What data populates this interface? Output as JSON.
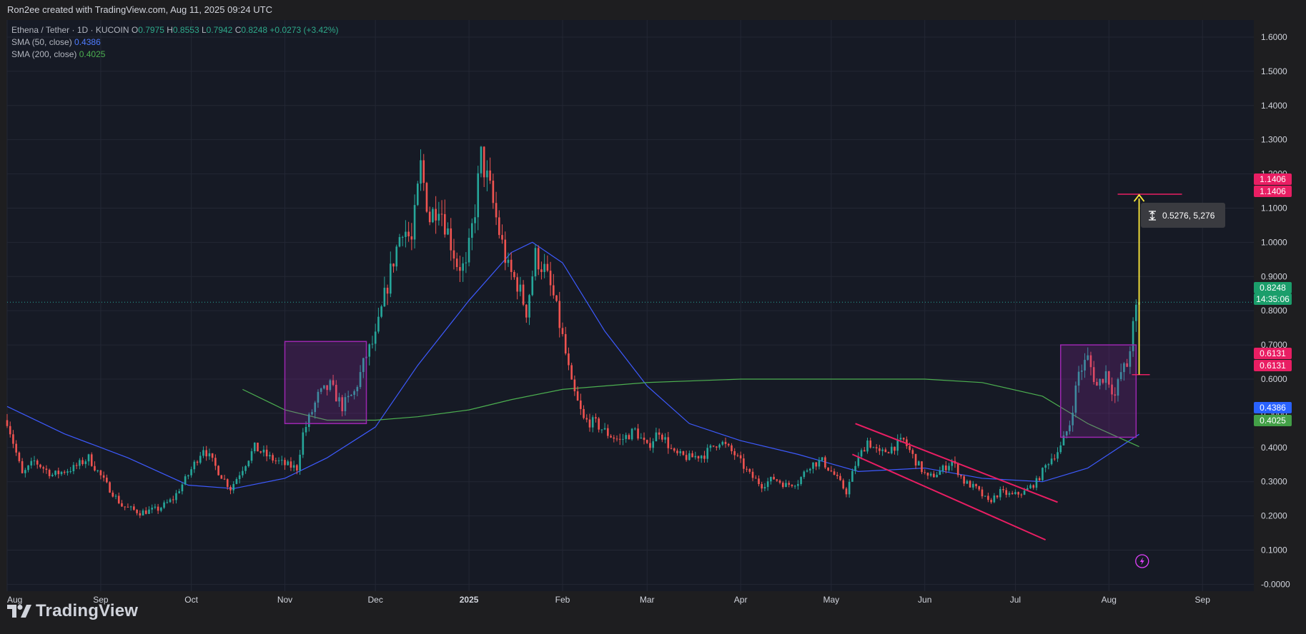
{
  "attribution": "Ron2ee created with TradingView.com, Aug 11, 2025 09:24 UTC",
  "brand": "TradingView",
  "legend": {
    "symbol": "Ethena / Tether · 1D · KUCOIN",
    "o_label": "O",
    "o": "0.7975",
    "h_label": "H",
    "h": "0.8553",
    "l_label": "L",
    "l": "0.7942",
    "c_label": "C",
    "c": "0.8248",
    "change": "+0.0273 (+3.42%)",
    "sma50_label": "SMA (50, close)",
    "sma50_value": "0.4386",
    "sma200_label": "SMA (200, close)",
    "sma200_value": "0.4025"
  },
  "tags": {
    "target_a": "1.1406",
    "target_b": "1.1406",
    "price": "0.8248",
    "countdown": "14:35:06",
    "entry_a": "0.6131",
    "entry_b": "0.6131",
    "sma50": "0.4386",
    "sma200": "0.4025"
  },
  "measure": {
    "text": "0.5276, 5,276"
  },
  "colors": {
    "up": "#26a69a",
    "down": "#ef5350",
    "sma50": "#3d5afe",
    "sma200": "#4caf50",
    "box": "#9c27b0",
    "channel": "#e91e63",
    "measure_arrow": "#ffeb3b",
    "tag_red": "#e91e63",
    "tag_green": "#1b9e6b",
    "tag_blue": "#2962ff",
    "tag_sma200": "#43a047"
  },
  "chart_data": {
    "type": "candlestick",
    "title": "Ethena / Tether · 1D · KUCOIN",
    "x_ticks": [
      "Aug",
      "Sep",
      "Oct",
      "Nov",
      "Dec",
      "2025",
      "Feb",
      "Mar",
      "Apr",
      "May",
      "Jun",
      "Jul",
      "Aug",
      "Sep"
    ],
    "y_ticks": [
      "1.6000",
      "1.5000",
      "1.4000",
      "1.3000",
      "1.2000",
      "1.1000",
      "1.0000",
      "0.9000",
      "0.8000",
      "0.7000",
      "0.6000",
      "0.5000",
      "0.4000",
      "0.3000",
      "0.2000",
      "0.1000",
      "-0.0000"
    ],
    "ylim": [
      -0.02,
      1.65
    ],
    "x_range": [
      "2024-08-01",
      "2025-09-18"
    ],
    "close_path": [
      [
        "2024-08-01",
        0.48
      ],
      [
        "2024-08-06",
        0.32
      ],
      [
        "2024-08-10",
        0.36
      ],
      [
        "2024-08-16",
        0.32
      ],
      [
        "2024-08-23",
        0.34
      ],
      [
        "2024-08-28",
        0.37
      ],
      [
        "2024-09-03",
        0.29
      ],
      [
        "2024-09-08",
        0.23
      ],
      [
        "2024-09-14",
        0.21
      ],
      [
        "2024-09-20",
        0.22
      ],
      [
        "2024-09-25",
        0.25
      ],
      [
        "2024-09-30",
        0.32
      ],
      [
        "2024-10-05",
        0.4
      ],
      [
        "2024-10-10",
        0.33
      ],
      [
        "2024-10-14",
        0.28
      ],
      [
        "2024-10-18",
        0.34
      ],
      [
        "2024-10-22",
        0.4
      ],
      [
        "2024-10-27",
        0.37
      ],
      [
        "2024-11-01",
        0.35
      ],
      [
        "2024-11-05",
        0.34
      ],
      [
        "2024-11-07",
        0.44
      ],
      [
        "2024-11-12",
        0.55
      ],
      [
        "2024-11-16",
        0.58
      ],
      [
        "2024-11-20",
        0.52
      ],
      [
        "2024-11-24",
        0.56
      ],
      [
        "2024-11-28",
        0.67
      ],
      [
        "2024-12-01",
        0.72
      ],
      [
        "2024-12-04",
        0.84
      ],
      [
        "2024-12-07",
        0.95
      ],
      [
        "2024-12-10",
        1.05
      ],
      [
        "2024-12-13",
        1.0
      ],
      [
        "2024-12-16",
        1.22
      ],
      [
        "2024-12-19",
        1.07
      ],
      [
        "2024-12-22",
        1.12
      ],
      [
        "2024-12-25",
        1.03
      ],
      [
        "2024-12-28",
        0.94
      ],
      [
        "2024-12-31",
        0.92
      ],
      [
        "2025-01-03",
        1.1
      ],
      [
        "2025-01-05",
        1.25
      ],
      [
        "2025-01-08",
        1.15
      ],
      [
        "2025-01-11",
        1.03
      ],
      [
        "2025-01-14",
        0.92
      ],
      [
        "2025-01-17",
        0.88
      ],
      [
        "2025-01-20",
        0.8
      ],
      [
        "2025-01-23",
        0.96
      ],
      [
        "2025-01-26",
        0.92
      ],
      [
        "2025-01-29",
        0.84
      ],
      [
        "2025-02-01",
        0.72
      ],
      [
        "2025-02-04",
        0.58
      ],
      [
        "2025-02-08",
        0.48
      ],
      [
        "2025-02-12",
        0.47
      ],
      [
        "2025-02-16",
        0.44
      ],
      [
        "2025-02-20",
        0.42
      ],
      [
        "2025-02-25",
        0.45
      ],
      [
        "2025-03-01",
        0.4
      ],
      [
        "2025-03-05",
        0.45
      ],
      [
        "2025-03-10",
        0.38
      ],
      [
        "2025-03-15",
        0.37
      ],
      [
        "2025-03-20",
        0.38
      ],
      [
        "2025-03-25",
        0.42
      ],
      [
        "2025-03-30",
        0.38
      ],
      [
        "2025-04-04",
        0.32
      ],
      [
        "2025-04-08",
        0.29
      ],
      [
        "2025-04-12",
        0.31
      ],
      [
        "2025-04-16",
        0.29
      ],
      [
        "2025-04-20",
        0.3
      ],
      [
        "2025-04-24",
        0.35
      ],
      [
        "2025-04-28",
        0.36
      ],
      [
        "2025-05-02",
        0.32
      ],
      [
        "2025-05-06",
        0.27
      ],
      [
        "2025-05-09",
        0.35
      ],
      [
        "2025-05-13",
        0.42
      ],
      [
        "2025-05-17",
        0.38
      ],
      [
        "2025-05-21",
        0.4
      ],
      [
        "2025-05-25",
        0.42
      ],
      [
        "2025-05-29",
        0.36
      ],
      [
        "2025-06-02",
        0.31
      ],
      [
        "2025-06-06",
        0.33
      ],
      [
        "2025-06-10",
        0.36
      ],
      [
        "2025-06-14",
        0.3
      ],
      [
        "2025-06-18",
        0.28
      ],
      [
        "2025-06-22",
        0.24
      ],
      [
        "2025-06-26",
        0.27
      ],
      [
        "2025-06-30",
        0.26
      ],
      [
        "2025-07-04",
        0.27
      ],
      [
        "2025-07-08",
        0.3
      ],
      [
        "2025-07-12",
        0.36
      ],
      [
        "2025-07-16",
        0.4
      ],
      [
        "2025-07-19",
        0.47
      ],
      [
        "2025-07-22",
        0.62
      ],
      [
        "2025-07-25",
        0.66
      ],
      [
        "2025-07-28",
        0.58
      ],
      [
        "2025-07-31",
        0.62
      ],
      [
        "2025-08-03",
        0.55
      ],
      [
        "2025-08-05",
        0.62
      ],
      [
        "2025-08-07",
        0.64
      ],
      [
        "2025-08-09",
        0.75
      ],
      [
        "2025-08-10",
        0.8
      ],
      [
        "2025-08-11",
        0.8248
      ]
    ],
    "sma50": [
      [
        "2024-08-01",
        0.52
      ],
      [
        "2024-08-20",
        0.44
      ],
      [
        "2024-09-10",
        0.37
      ],
      [
        "2024-09-30",
        0.29
      ],
      [
        "2024-10-15",
        0.28
      ],
      [
        "2024-11-01",
        0.31
      ],
      [
        "2024-11-15",
        0.37
      ],
      [
        "2024-12-01",
        0.46
      ],
      [
        "2024-12-15",
        0.64
      ],
      [
        "2025-01-01",
        0.83
      ],
      [
        "2025-01-15",
        0.97
      ],
      [
        "2025-01-22",
        1.0
      ],
      [
        "2025-02-01",
        0.94
      ],
      [
        "2025-02-15",
        0.74
      ],
      [
        "2025-03-01",
        0.58
      ],
      [
        "2025-03-15",
        0.47
      ],
      [
        "2025-04-01",
        0.42
      ],
      [
        "2025-04-20",
        0.38
      ],
      [
        "2025-05-10",
        0.33
      ],
      [
        "2025-06-01",
        0.34
      ],
      [
        "2025-06-20",
        0.31
      ],
      [
        "2025-07-10",
        0.3
      ],
      [
        "2025-07-25",
        0.34
      ],
      [
        "2025-08-11",
        0.4386
      ]
    ],
    "sma200": [
      [
        "2024-10-18",
        0.57
      ],
      [
        "2024-11-01",
        0.51
      ],
      [
        "2024-11-15",
        0.48
      ],
      [
        "2024-12-01",
        0.48
      ],
      [
        "2024-12-15",
        0.49
      ],
      [
        "2025-01-01",
        0.51
      ],
      [
        "2025-01-15",
        0.54
      ],
      [
        "2025-02-01",
        0.57
      ],
      [
        "2025-03-01",
        0.59
      ],
      [
        "2025-04-01",
        0.6
      ],
      [
        "2025-05-01",
        0.6
      ],
      [
        "2025-06-01",
        0.6
      ],
      [
        "2025-06-20",
        0.59
      ],
      [
        "2025-07-10",
        0.55
      ],
      [
        "2025-07-25",
        0.47
      ],
      [
        "2025-08-11",
        0.4025
      ]
    ],
    "annotations": {
      "boxes": [
        {
          "from": "2024-11-01",
          "to": "2024-11-28",
          "low": 0.47,
          "high": 0.71
        },
        {
          "from": "2025-07-16",
          "to": "2025-08-10",
          "low": 0.43,
          "high": 0.7
        }
      ],
      "channel": [
        {
          "from": [
            "2025-05-09",
            0.47
          ],
          "to": [
            "2025-07-15",
            0.24
          ]
        },
        {
          "from": [
            "2025-05-08",
            0.38
          ],
          "to": [
            "2025-07-11",
            0.13
          ]
        }
      ],
      "measure": {
        "date": "2025-08-11",
        "from": 0.6131,
        "to": 1.1406
      }
    },
    "grid": true,
    "last_price": 0.8248
  }
}
